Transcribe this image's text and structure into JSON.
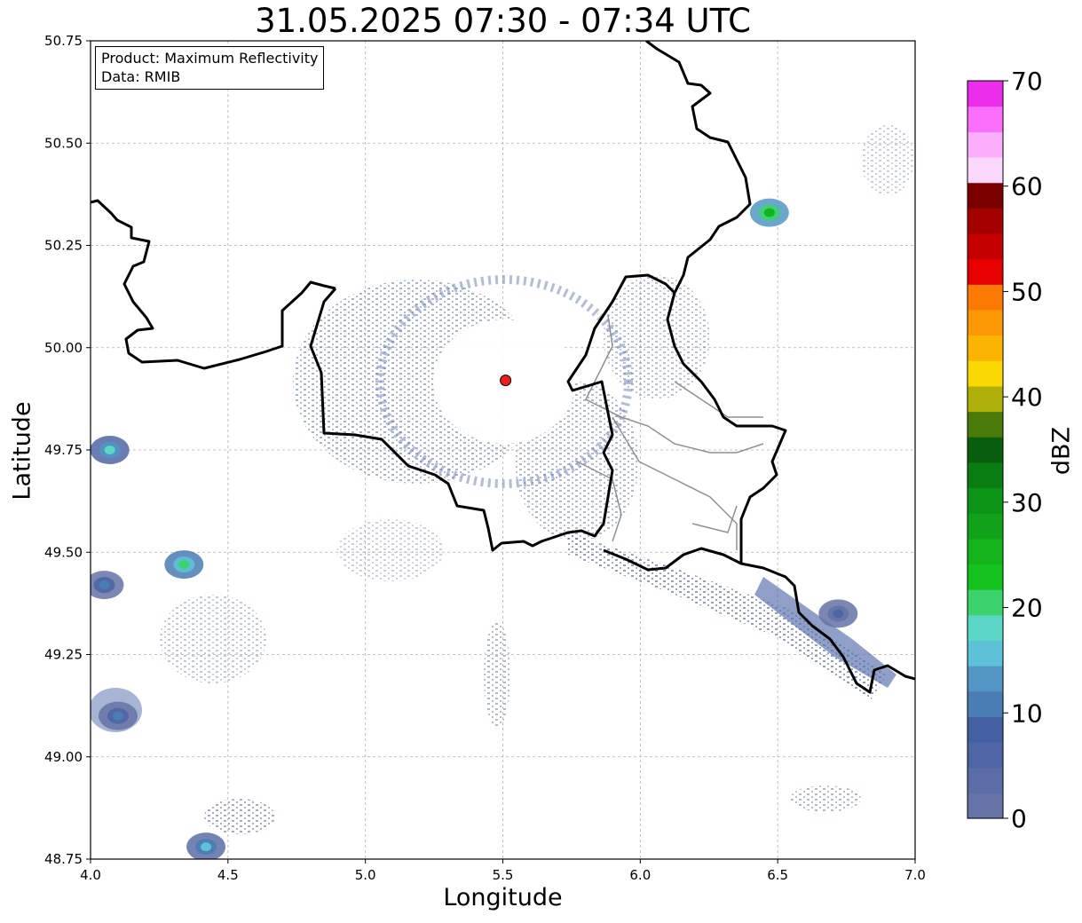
{
  "title": "31.05.2025 07:30 - 07:34 UTC",
  "info": {
    "product": "Product: Maximum Reflectivity",
    "data": "Data: RMIB"
  },
  "chart_data": {
    "type": "heatmap",
    "title": "31.05.2025 07:30 - 07:34 UTC",
    "xlabel": "Longitude",
    "ylabel": "Latitude",
    "xlim": [
      4.0,
      7.0
    ],
    "ylim": [
      48.75,
      50.75
    ],
    "xticks": [
      "4.0",
      "4.5",
      "5.0",
      "5.5",
      "6.0",
      "6.5",
      "7.0"
    ],
    "yticks": [
      "48.75",
      "49.00",
      "49.25",
      "49.50",
      "49.75",
      "50.00",
      "50.25",
      "50.50",
      "50.75"
    ],
    "grid": true,
    "radar_site": {
      "lon": 5.51,
      "lat": 49.92
    },
    "colorbar": {
      "label": "dBZ",
      "ticks": [
        "0",
        "10",
        "20",
        "30",
        "40",
        "50",
        "60",
        "70"
      ],
      "range": [
        0,
        70
      ],
      "step": 2.5,
      "colors": [
        "#6573a6",
        "#5a6da7",
        "#4f66a6",
        "#4360a3",
        "#4a7db3",
        "#5196c4",
        "#5dc1d8",
        "#5cd6c7",
        "#3cd36d",
        "#14c21e",
        "#14b31c",
        "#10a31a",
        "#0c9416",
        "#0a7d12",
        "#085e0c",
        "#4a7a0a",
        "#afaf09",
        "#fcd802",
        "#fcb402",
        "#fc9804",
        "#fc7a04",
        "#e60000",
        "#c40000",
        "#a50000",
        "#7a0000",
        "#fcd7fc",
        "#fcaefc",
        "#fc6ffc",
        "#ec2eec"
      ]
    },
    "echo_regions": [
      {
        "lon": 4.34,
        "lat": 49.47,
        "dbz": 22
      },
      {
        "lon": 4.07,
        "lat": 49.75,
        "dbz": 18
      },
      {
        "lon": 4.05,
        "lat": 49.42,
        "dbz": 12
      },
      {
        "lon": 4.1,
        "lat": 49.1,
        "dbz": 10
      },
      {
        "lon": 4.42,
        "lat": 48.78,
        "dbz": 15
      },
      {
        "lon": 6.47,
        "lat": 50.33,
        "dbz": 25
      },
      {
        "lon": 6.72,
        "lat": 49.35,
        "dbz": 5
      }
    ]
  }
}
